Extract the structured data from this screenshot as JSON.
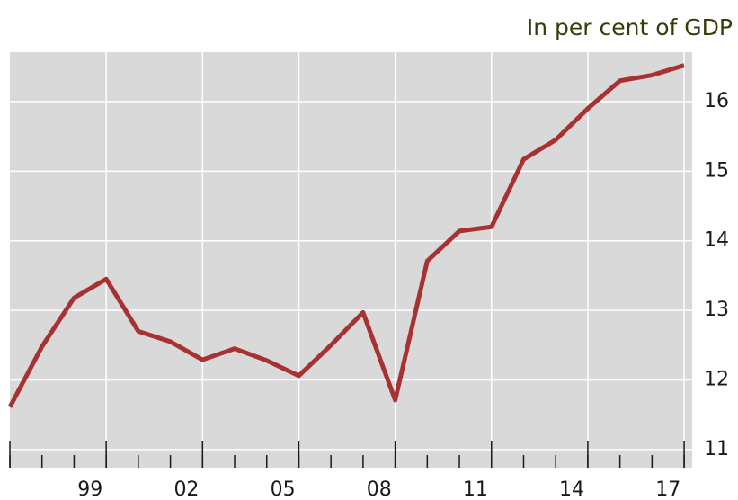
{
  "chart_data": {
    "type": "line",
    "title": "In per cent of GDP",
    "x": [
      1996,
      1997,
      1998,
      1999,
      2000,
      2001,
      2002,
      2003,
      2004,
      2005,
      2006,
      2007,
      2008,
      2009,
      2010,
      2011,
      2012,
      2013,
      2014,
      2015,
      2016,
      2017
    ],
    "series": [
      {
        "color": "#a83232",
        "values": [
          11.61,
          12.48,
          13.18,
          13.45,
          12.7,
          12.55,
          12.29,
          12.45,
          12.28,
          12.06,
          12.5,
          12.97,
          11.71,
          13.71,
          14.14,
          14.2,
          15.17,
          15.45,
          15.9,
          16.3,
          16.38,
          16.52
        ]
      }
    ],
    "xlim": [
      1996,
      2017.25
    ],
    "xticks": [
      {
        "value": 1999,
        "label": "99"
      },
      {
        "value": 2002,
        "label": "02"
      },
      {
        "value": 2005,
        "label": "05"
      },
      {
        "value": 2008,
        "label": "08"
      },
      {
        "value": 2011,
        "label": "11"
      },
      {
        "value": 2014,
        "label": "14"
      },
      {
        "value": 2017,
        "label": "17"
      }
    ],
    "ylim": [
      10.74,
      16.71
    ],
    "yticks": [
      11,
      12,
      13,
      14,
      15,
      16
    ],
    "grid": true,
    "background": "#d9d9d9"
  }
}
